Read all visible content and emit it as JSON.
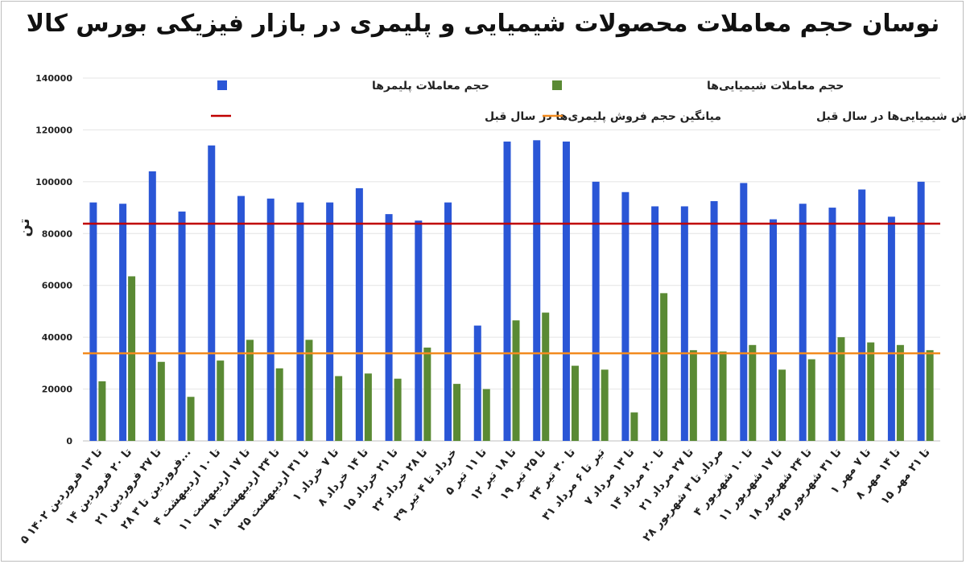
{
  "chart_data": {
    "type": "bar",
    "title": "نوسان حجم معاملات محصولات شیمیایی و پلیمری در بازار فیزیکی بورس کالا",
    "ylabel": "تن",
    "ylim": [
      0,
      140000
    ],
    "yticks": [
      "0",
      "20000",
      "40000",
      "60000",
      "80000",
      "100000",
      "120000",
      "140000"
    ],
    "grid": true,
    "legend_position": "top",
    "categories": [
      "۵ تا ۱۳ فروردین ۱۴۰۲",
      "۱۴ تا ۲۰ فروردین",
      "۲۱ تا ۲۷ فروردین",
      "۲۸ فروردین تا ۳...",
      "۴ تا ۱۰ اردیبهشت",
      "۱۱ تا ۱۷ اردیبهشت",
      "۱۸ تا ۲۴ اردیبهشت",
      "۲۵ تا ۳۱ اردیبهشت",
      "۱ تا ۷ خرداد",
      "۸ تا ۱۴ خرداد",
      "۱۵ تا ۲۱ خرداد",
      "۲۲ تا ۲۸ خرداد",
      "۲۹ خرداد تا ۴ تیر",
      "۵ تا ۱۱ تیر",
      "۱۲ تا ۱۸ تیر",
      "۱۹ تا ۲۵ تیر",
      "۲۴ تا ۳۰ تیر",
      "۳۱ تیر تا ۶ مرداد",
      "۷ تا ۱۳ مرداد",
      "۱۴ تا ۲۰ مرداد",
      "۲۱ تا ۲۷ مرداد",
      "۲۸ مرداد تا ۳ شهریور",
      "۴ تا ۱۰ شهریور",
      "۱۱ تا ۱۷ شهریور",
      "۱۸ تا ۲۴ شهریور",
      "۲۵ تا ۳۱ شهریور",
      "۱ تا ۷ مهر",
      "۸ تا ۱۴ مهر",
      "۱۵ تا ۲۱ مهر"
    ],
    "series": [
      {
        "name": "حجم معاملات پلیمرها",
        "color": "#2a56d6",
        "values": [
          92000,
          91500,
          104000,
          88500,
          114000,
          94500,
          93500,
          92000,
          92000,
          97500,
          87500,
          85000,
          92000,
          44500,
          115500,
          116000,
          115500,
          100000,
          96000,
          90500,
          90500,
          92500,
          99500,
          85500,
          91500,
          90000,
          97000,
          86500,
          100000
        ]
      },
      {
        "name": "حجم معاملات شیمیایی‌ها",
        "color": "#5a8a34",
        "values": [
          23000,
          63500,
          30500,
          17000,
          31000,
          39000,
          28000,
          39000,
          25000,
          26000,
          24000,
          36000,
          22000,
          20000,
          46500,
          49500,
          29000,
          27500,
          11000,
          57000,
          35000,
          34500,
          37000,
          27500,
          31500,
          40000,
          38000,
          37000,
          35000
        ]
      }
    ],
    "reference_lines": [
      {
        "name": "میانگین حجم فروش پلیمری‌ها در سال قبل",
        "color": "#c00000",
        "value": 83800
      },
      {
        "name": "میانگین حجم فروش شیمیایی‌ها در سال قبل",
        "color": "#f28a1e",
        "value": 33800
      }
    ]
  }
}
